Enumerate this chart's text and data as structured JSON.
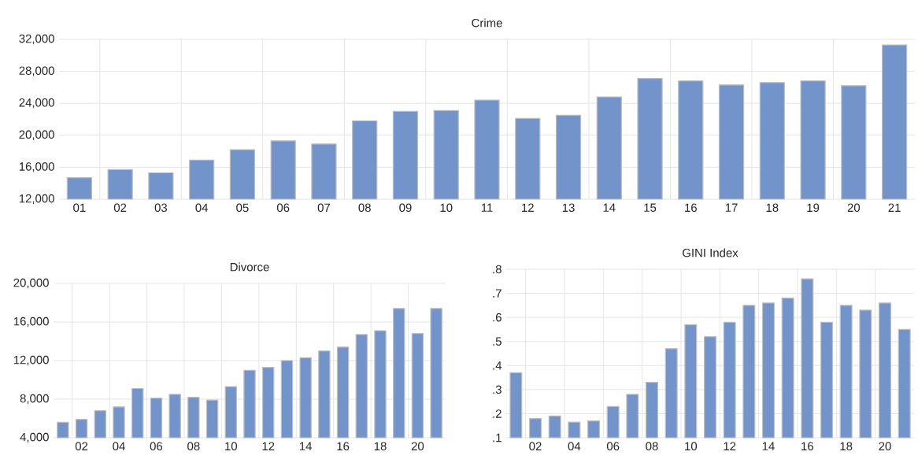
{
  "chart_data": [
    {
      "type": "bar",
      "title": "Crime",
      "categories": [
        "01",
        "02",
        "03",
        "04",
        "05",
        "06",
        "07",
        "08",
        "09",
        "10",
        "11",
        "12",
        "13",
        "14",
        "15",
        "16",
        "17",
        "18",
        "19",
        "20",
        "21"
      ],
      "values": [
        14700,
        15700,
        15300,
        16900,
        18200,
        19300,
        18900,
        21800,
        23000,
        23100,
        24400,
        22100,
        22500,
        24800,
        27100,
        26800,
        26300,
        26600,
        26800,
        26200,
        31300
      ],
      "color": "#7393cb",
      "ylim": [
        12000,
        32000
      ],
      "yticks": [
        {
          "value": 12000,
          "label": "12,000"
        },
        {
          "value": 16000,
          "label": "16,000"
        },
        {
          "value": 20000,
          "label": "20,000"
        },
        {
          "value": 24000,
          "label": "24,000"
        },
        {
          "value": 28000,
          "label": "28,000"
        },
        {
          "value": 32000,
          "label": "32,000"
        }
      ],
      "grid": true
    },
    {
      "type": "bar",
      "title": "Divorce",
      "categories": [
        null,
        "02",
        null,
        "04",
        null,
        "06",
        null,
        "08",
        null,
        "10",
        null,
        "12",
        null,
        "14",
        null,
        "16",
        null,
        "18",
        null,
        "20",
        null
      ],
      "values": [
        5600,
        5900,
        6800,
        7200,
        9100,
        8100,
        8500,
        8200,
        7900,
        9300,
        11000,
        11300,
        12000,
        12300,
        13000,
        13400,
        14700,
        15100,
        17400,
        14800,
        17400
      ],
      "color": "#7393cb",
      "ylim": [
        4000,
        20000
      ],
      "yticks": [
        {
          "value": 4000,
          "label": "4,000"
        },
        {
          "value": 8000,
          "label": "8,000"
        },
        {
          "value": 12000,
          "label": "12,000"
        },
        {
          "value": 16000,
          "label": "16,000"
        },
        {
          "value": 20000,
          "label": "20,000"
        }
      ],
      "grid": true
    },
    {
      "type": "bar",
      "title": "GINI Index",
      "categories": [
        null,
        "02",
        null,
        "04",
        null,
        "06",
        null,
        "08",
        null,
        "10",
        null,
        "12",
        null,
        "14",
        null,
        "16",
        null,
        "18",
        null,
        "20",
        null
      ],
      "values": [
        0.37,
        0.18,
        0.19,
        0.165,
        0.17,
        0.23,
        0.28,
        0.33,
        0.47,
        0.57,
        0.52,
        0.58,
        0.65,
        0.66,
        0.68,
        0.76,
        0.58,
        0.65,
        0.63,
        0.66,
        0.55
      ],
      "color": "#7393cb",
      "ylim": [
        0.1,
        0.8
      ],
      "yticks": [
        {
          "value": 0.1,
          "label": ".1"
        },
        {
          "value": 0.2,
          "label": ".2"
        },
        {
          "value": 0.3,
          "label": ".3"
        },
        {
          "value": 0.4,
          "label": ".4"
        },
        {
          "value": 0.5,
          "label": ".5"
        },
        {
          "value": 0.6,
          "label": ".6"
        },
        {
          "value": 0.7,
          "label": ".7"
        },
        {
          "value": 0.8,
          "label": ".8"
        }
      ],
      "grid": true
    }
  ]
}
